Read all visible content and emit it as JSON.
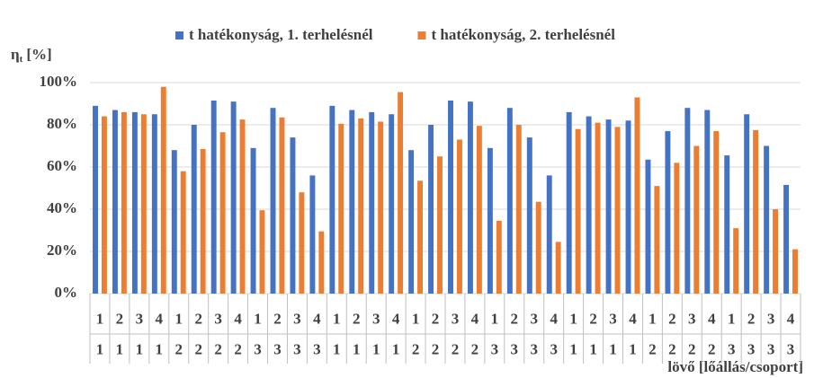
{
  "chart_data": {
    "type": "bar",
    "ylabel_symbol": "η",
    "ylabel_sub": "t",
    "ylabel_unit": "[%]",
    "xlabel": "lövő [lőállás/csoport]",
    "categories": [
      [
        "1",
        "1"
      ],
      [
        "2",
        "1"
      ],
      [
        "3",
        "1"
      ],
      [
        "4",
        "1"
      ],
      [
        "1",
        "2"
      ],
      [
        "2",
        "2"
      ],
      [
        "3",
        "2"
      ],
      [
        "4",
        "2"
      ],
      [
        "1",
        "3"
      ],
      [
        "2",
        "3"
      ],
      [
        "3",
        "3"
      ],
      [
        "4",
        "3"
      ],
      [
        "1",
        "1"
      ],
      [
        "2",
        "1"
      ],
      [
        "3",
        "1"
      ],
      [
        "4",
        "1"
      ],
      [
        "1",
        "2"
      ],
      [
        "2",
        "2"
      ],
      [
        "3",
        "2"
      ],
      [
        "4",
        "2"
      ],
      [
        "1",
        "3"
      ],
      [
        "2",
        "3"
      ],
      [
        "3",
        "3"
      ],
      [
        "4",
        "3"
      ],
      [
        "1",
        "1"
      ],
      [
        "2",
        "1"
      ],
      [
        "3",
        "1"
      ],
      [
        "4",
        "1"
      ],
      [
        "1",
        "2"
      ],
      [
        "2",
        "2"
      ],
      [
        "3",
        "2"
      ],
      [
        "4",
        "2"
      ],
      [
        "1",
        "3"
      ],
      [
        "2",
        "3"
      ],
      [
        "3",
        "3"
      ],
      [
        "4",
        "3"
      ]
    ],
    "series": [
      {
        "name": "t hatékonyság, 1. terhelésnél",
        "color": "#4472c4",
        "values": [
          89,
          87,
          86,
          85,
          68,
          80,
          91.5,
          91,
          69,
          88,
          74,
          56,
          89,
          87,
          86,
          85,
          68,
          80,
          91.5,
          91,
          69,
          88,
          74,
          56,
          86,
          84,
          82.5,
          82,
          63.5,
          77,
          88,
          87,
          65.5,
          85,
          70,
          51.5
        ]
      },
      {
        "name": "t hatékonyság, 2. terhelésnél",
        "color": "#ed7d31",
        "values": [
          84,
          86,
          85,
          98,
          58,
          68.5,
          76.5,
          82.5,
          39.5,
          83.5,
          48,
          29.5,
          80.5,
          83,
          81.5,
          95.5,
          53.5,
          65,
          73,
          79.5,
          34.5,
          80,
          43.5,
          24.5,
          78,
          81,
          79,
          93,
          51,
          62,
          70,
          77,
          31,
          77.5,
          40,
          21
        ]
      }
    ],
    "ylim": [
      0,
      100
    ],
    "yticks": [
      {
        "value": 0,
        "label": "0%"
      },
      {
        "value": 20,
        "label": "20%"
      },
      {
        "value": 40,
        "label": "40%"
      },
      {
        "value": 60,
        "label": "60%"
      },
      {
        "value": 80,
        "label": "80%"
      },
      {
        "value": 100,
        "label": "100%"
      }
    ],
    "grid": true,
    "legend": "top"
  }
}
